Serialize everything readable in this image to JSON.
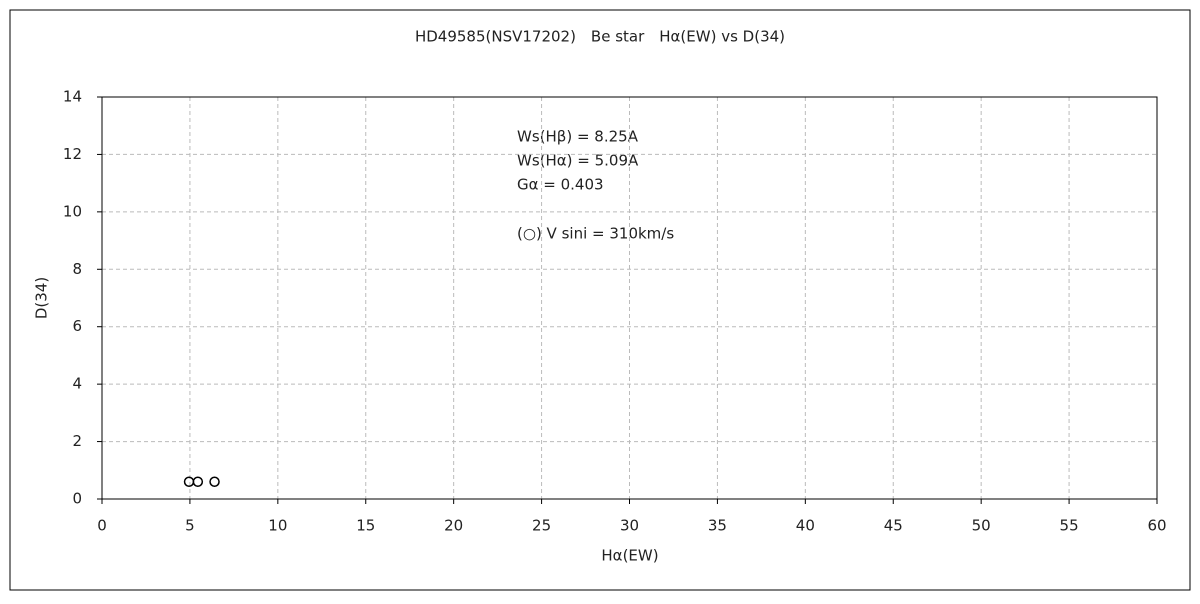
{
  "chart_data": {
    "type": "scatter",
    "title": "HD49585(NSV17202)　Be star　Hα(EW) vs D(34)",
    "x_label": "Hα(EW)",
    "y_label": "D(34)",
    "annotations": [
      "Ws(Hβ) = 8.25A",
      "Ws(Hα) = 5.09A",
      "Gα = 0.403",
      "(○) V sini = 310km/s"
    ],
    "series": [
      {
        "name": "V sini = 310km/s",
        "color": "#000000",
        "x": [
          4.95,
          5.45,
          6.4
        ],
        "values": [
          0.6,
          0.6,
          0.6
        ]
      }
    ],
    "xlim": [
      0,
      60
    ],
    "xticks": [
      0,
      5,
      10,
      15,
      20,
      25,
      30,
      35,
      40,
      45,
      50,
      55,
      60
    ],
    "ylim": [
      0,
      14
    ],
    "yticks": [
      0,
      2,
      4,
      6,
      8,
      10,
      12,
      14
    ],
    "grid": true
  }
}
